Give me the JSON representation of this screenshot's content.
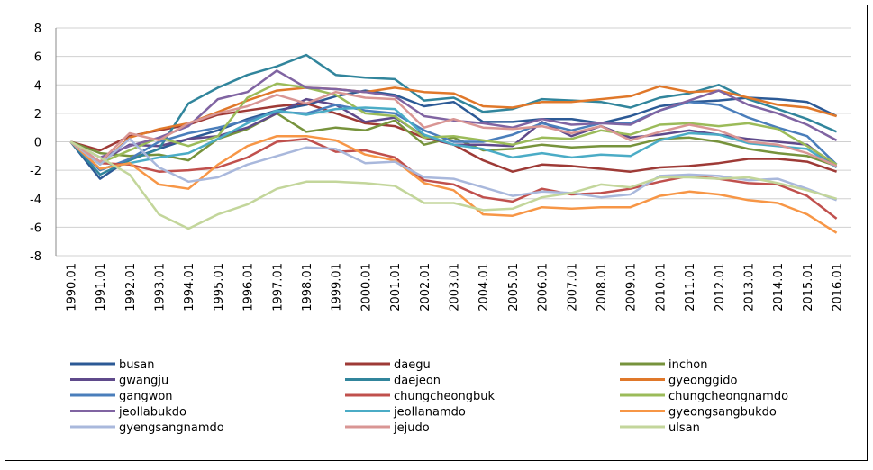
{
  "chart_data": {
    "type": "line",
    "categories": [
      "1990.01",
      "1991.01",
      "1992.01",
      "1993.01",
      "1994.01",
      "1995.01",
      "1996.01",
      "1997.01",
      "1998.01",
      "1999.01",
      "2000.01",
      "2001.01",
      "2002.01",
      "2003.01",
      "2004.01",
      "2005.01",
      "2006.01",
      "2007.01",
      "2008.01",
      "2009.01",
      "2010.01",
      "2011.01",
      "2012.01",
      "2013.01",
      "2014.01",
      "2015.01",
      "2016.01"
    ],
    "ylim": [
      -8,
      8
    ],
    "yticks": [
      -8,
      -6,
      -4,
      -2,
      0,
      2,
      4,
      6,
      8
    ],
    "grid": true,
    "legend": "bottom",
    "series": [
      {
        "name": "busan",
        "color": "#2c5a96",
        "values": [
          0,
          -2.6,
          -1.2,
          -0.5,
          0.2,
          0.8,
          1.6,
          2.2,
          2.6,
          3.2,
          3.6,
          3.3,
          2.5,
          2.8,
          1.4,
          1.4,
          1.6,
          1.6,
          1.3,
          1.8,
          2.5,
          2.8,
          2.9,
          3.1,
          3.0,
          2.8,
          1.8
        ]
      },
      {
        "name": "daegu",
        "color": "#9e3a36",
        "values": [
          0,
          -0.6,
          0.4,
          0.8,
          1.2,
          1.9,
          2.2,
          2.5,
          2.7,
          2.0,
          1.3,
          1.1,
          0.3,
          -0.2,
          -1.3,
          -2.1,
          -1.6,
          -1.7,
          -1.9,
          -2.1,
          -1.8,
          -1.7,
          -1.5,
          -1.2,
          -1.2,
          -1.4,
          -2.1
        ]
      },
      {
        "name": "inchon",
        "color": "#77933c",
        "values": [
          0,
          -0.8,
          -1.0,
          -0.9,
          -1.3,
          0.2,
          0.9,
          2.0,
          0.7,
          1.0,
          0.8,
          1.5,
          -0.2,
          0.3,
          -0.6,
          -0.5,
          -0.2,
          -0.4,
          -0.3,
          -0.3,
          0.2,
          0.3,
          0.0,
          -0.5,
          -0.8,
          -1.0,
          -1.7
        ]
      },
      {
        "name": "gwangju",
        "color": "#5f4a8b",
        "values": [
          0,
          -1.4,
          -0.2,
          -0.3,
          0.2,
          0.4,
          1.0,
          2.0,
          3.0,
          2.6,
          1.4,
          1.7,
          0.4,
          -0.2,
          -0.2,
          -0.3,
          1.4,
          0.4,
          1.1,
          0.3,
          0.5,
          0.8,
          0.5,
          0.2,
          0.0,
          -0.2,
          -1.8
        ]
      },
      {
        "name": "daejeon",
        "color": "#31859c",
        "values": [
          0,
          -2.3,
          -1.3,
          -0.5,
          2.7,
          3.8,
          4.7,
          5.3,
          6.1,
          4.7,
          4.5,
          4.4,
          2.9,
          3.1,
          2.1,
          2.3,
          3.0,
          2.9,
          2.8,
          2.4,
          3.1,
          3.4,
          4.0,
          3.0,
          2.3,
          1.6,
          0.7
        ]
      },
      {
        "name": "gyeonggido",
        "color": "#e0782a",
        "values": [
          0,
          -1.6,
          0.3,
          0.9,
          1.3,
          2.1,
          2.9,
          3.6,
          3.8,
          3.7,
          3.5,
          3.8,
          3.5,
          3.4,
          2.5,
          2.4,
          2.8,
          2.8,
          3.0,
          3.2,
          3.9,
          3.5,
          3.6,
          3.1,
          2.6,
          2.4,
          1.8
        ]
      },
      {
        "name": "gangwon",
        "color": "#4a7ebb",
        "values": [
          0,
          -2.0,
          -1.2,
          0.0,
          0.6,
          1.0,
          1.5,
          2.1,
          2.0,
          2.6,
          2.2,
          2.0,
          0.8,
          0.0,
          0.0,
          0.5,
          1.3,
          0.8,
          1.3,
          1.3,
          2.2,
          2.8,
          2.6,
          1.7,
          1.0,
          0.4,
          -1.6
        ]
      },
      {
        "name": "chungcheongbuk",
        "color": "#c0504d",
        "values": [
          0,
          -1.5,
          -1.6,
          -2.1,
          -2.0,
          -1.8,
          -1.1,
          0.0,
          0.2,
          -0.7,
          -0.6,
          -1.1,
          -2.7,
          -3.0,
          -3.9,
          -4.2,
          -3.3,
          -3.7,
          -3.6,
          -3.3,
          -2.8,
          -2.4,
          -2.6,
          -2.9,
          -3.0,
          -3.8,
          -5.4
        ]
      },
      {
        "name": "chungcheongnamdo",
        "color": "#9bbb59",
        "values": [
          0,
          -1.5,
          -0.6,
          0.3,
          -0.3,
          0.4,
          3.1,
          4.1,
          3.8,
          3.3,
          2.0,
          1.8,
          0.3,
          0.4,
          0.1,
          -0.2,
          0.3,
          0.2,
          0.8,
          0.5,
          1.2,
          1.3,
          1.1,
          1.3,
          0.9,
          -0.3,
          -1.6
        ]
      },
      {
        "name": "jeollabukdo",
        "color": "#8064a2",
        "values": [
          0,
          -1.1,
          -0.3,
          0.3,
          1.1,
          3.0,
          3.5,
          5.0,
          3.8,
          3.7,
          3.5,
          3.2,
          1.8,
          1.5,
          1.3,
          1.0,
          1.6,
          1.2,
          1.3,
          1.2,
          2.2,
          2.9,
          3.6,
          2.6,
          2.0,
          1.2,
          0.1
        ]
      },
      {
        "name": "jeollanamdo",
        "color": "#4bacc6",
        "values": [
          0,
          -1.9,
          -1.5,
          -1.1,
          -0.8,
          0.2,
          1.3,
          2.2,
          1.9,
          2.3,
          2.4,
          2.3,
          0.5,
          -0.2,
          -0.5,
          -1.1,
          -0.8,
          -1.1,
          -0.9,
          -1.0,
          0.1,
          0.6,
          0.5,
          -0.1,
          -0.3,
          -0.5,
          -1.8
        ]
      },
      {
        "name": "gyeongsangbukdo",
        "color": "#f79646",
        "values": [
          0,
          -1.9,
          -1.5,
          -3.0,
          -3.3,
          -1.6,
          -0.3,
          0.4,
          0.4,
          0.1,
          -0.9,
          -1.3,
          -2.9,
          -3.4,
          -5.1,
          -5.2,
          -4.6,
          -4.7,
          -4.6,
          -4.6,
          -3.8,
          -3.5,
          -3.7,
          -4.1,
          -4.3,
          -5.1,
          -6.4
        ]
      },
      {
        "name": "gyengsangnamdo",
        "color": "#a9b8dc",
        "values": [
          0,
          -1.6,
          0.2,
          -1.8,
          -2.8,
          -2.5,
          -1.6,
          -1.0,
          -0.4,
          -0.5,
          -1.5,
          -1.4,
          -2.5,
          -2.6,
          -3.2,
          -3.8,
          -3.5,
          -3.6,
          -3.9,
          -3.7,
          -2.4,
          -2.3,
          -2.4,
          -2.7,
          -2.6,
          -3.3,
          -4.1
        ]
      },
      {
        "name": "jejudo",
        "color": "#d99694",
        "values": [
          0,
          -1.4,
          0.6,
          0.1,
          1.3,
          2.0,
          2.5,
          3.3,
          2.7,
          3.5,
          3.1,
          3.0,
          1.0,
          1.6,
          1.0,
          0.9,
          1.1,
          0.6,
          1.1,
          0.1,
          0.7,
          1.2,
          0.8,
          0.0,
          -0.2,
          -0.8,
          -1.7
        ]
      },
      {
        "name": "ulsan",
        "color": "#c3d69b",
        "values": [
          0,
          -1.1,
          -2.3,
          -5.1,
          -6.1,
          -5.1,
          -4.4,
          -3.3,
          -2.8,
          -2.8,
          -2.9,
          -3.1,
          -4.3,
          -4.3,
          -4.8,
          -4.7,
          -3.9,
          -3.6,
          -3.0,
          -3.2,
          -2.5,
          -2.5,
          -2.6,
          -2.5,
          -2.9,
          -3.4,
          -4.0
        ]
      }
    ]
  }
}
